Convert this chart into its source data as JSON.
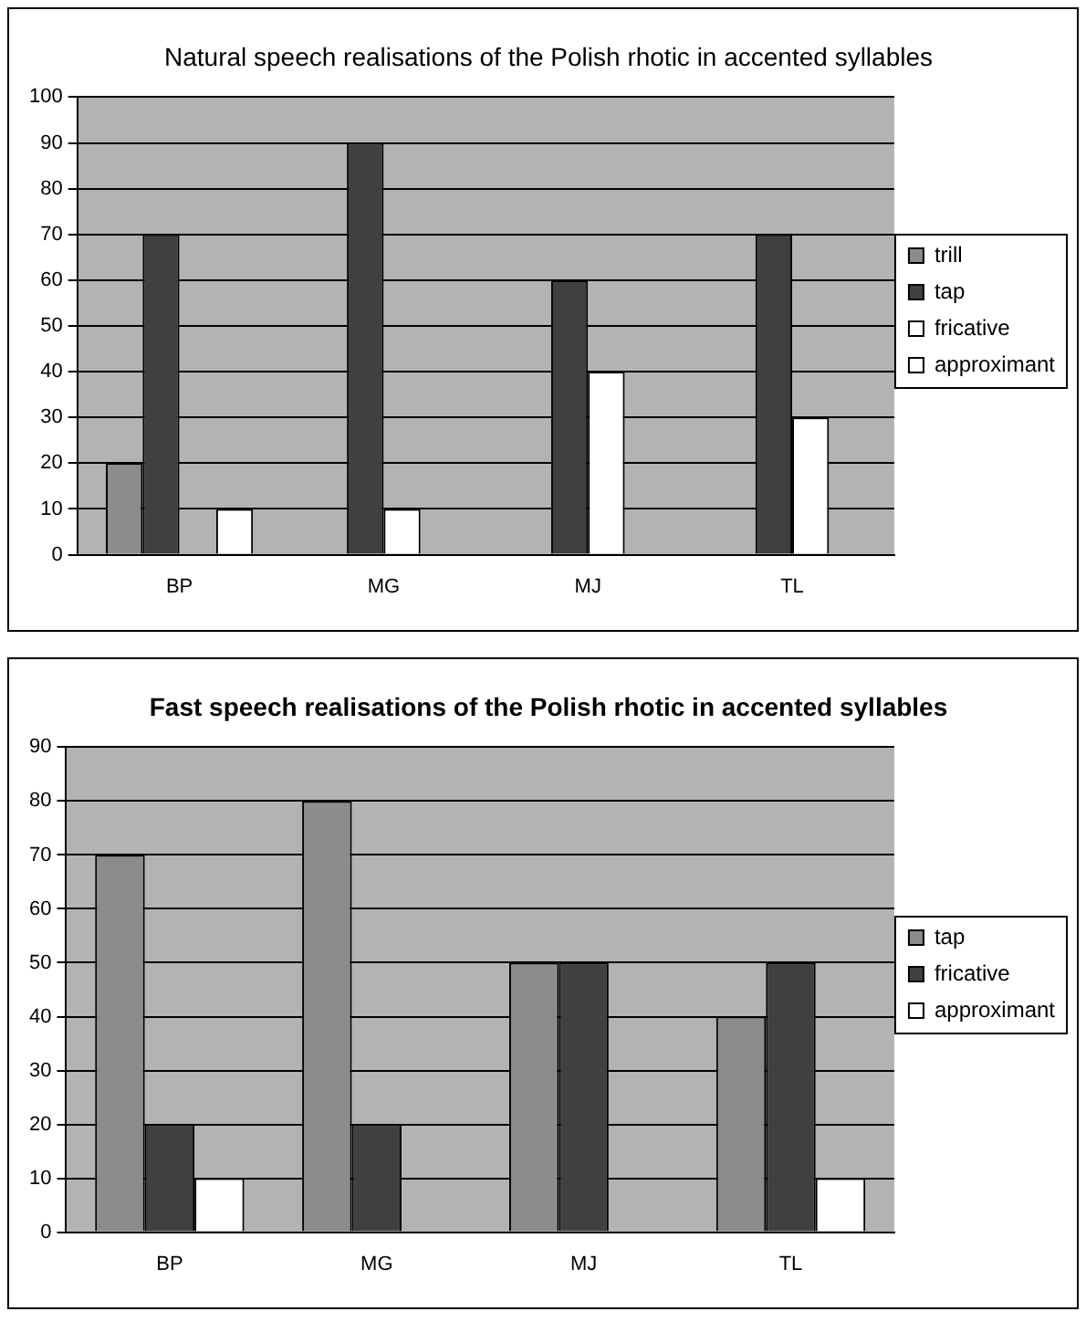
{
  "chart_data": [
    {
      "type": "bar",
      "title": "Natural speech realisations of the Polish rhotic in accented syllables",
      "categories": [
        "BP",
        "MG",
        "MJ",
        "TL"
      ],
      "series": [
        {
          "name": "trill",
          "color": "#8c8c8c",
          "values": [
            20,
            0,
            0,
            0
          ]
        },
        {
          "name": "tap",
          "color": "#404040",
          "values": [
            70,
            90,
            60,
            70
          ]
        },
        {
          "name": "fricative",
          "color": "#ffffff",
          "values": [
            0,
            10,
            40,
            30
          ]
        },
        {
          "name": "approximant",
          "color": "#ffffff",
          "values": [
            10,
            0,
            0,
            0
          ]
        }
      ],
      "ylim": [
        0,
        100
      ],
      "yticks": [
        0,
        10,
        20,
        30,
        40,
        50,
        60,
        70,
        80,
        90,
        100
      ],
      "grid": "y",
      "legend": "right"
    },
    {
      "type": "bar",
      "title": "Fast speech realisations of the Polish rhotic in accented syllables",
      "categories": [
        "BP",
        "MG",
        "MJ",
        "TL"
      ],
      "series": [
        {
          "name": "tap",
          "color": "#8c8c8c",
          "values": [
            70,
            80,
            50,
            40
          ]
        },
        {
          "name": "fricative",
          "color": "#404040",
          "values": [
            20,
            20,
            50,
            50
          ]
        },
        {
          "name": "approximant",
          "color": "#ffffff",
          "values": [
            10,
            0,
            0,
            10
          ]
        }
      ],
      "ylim": [
        0,
        90
      ],
      "yticks": [
        0,
        10,
        20,
        30,
        40,
        50,
        60,
        70,
        80,
        90
      ],
      "grid": "y",
      "legend": "right"
    }
  ]
}
